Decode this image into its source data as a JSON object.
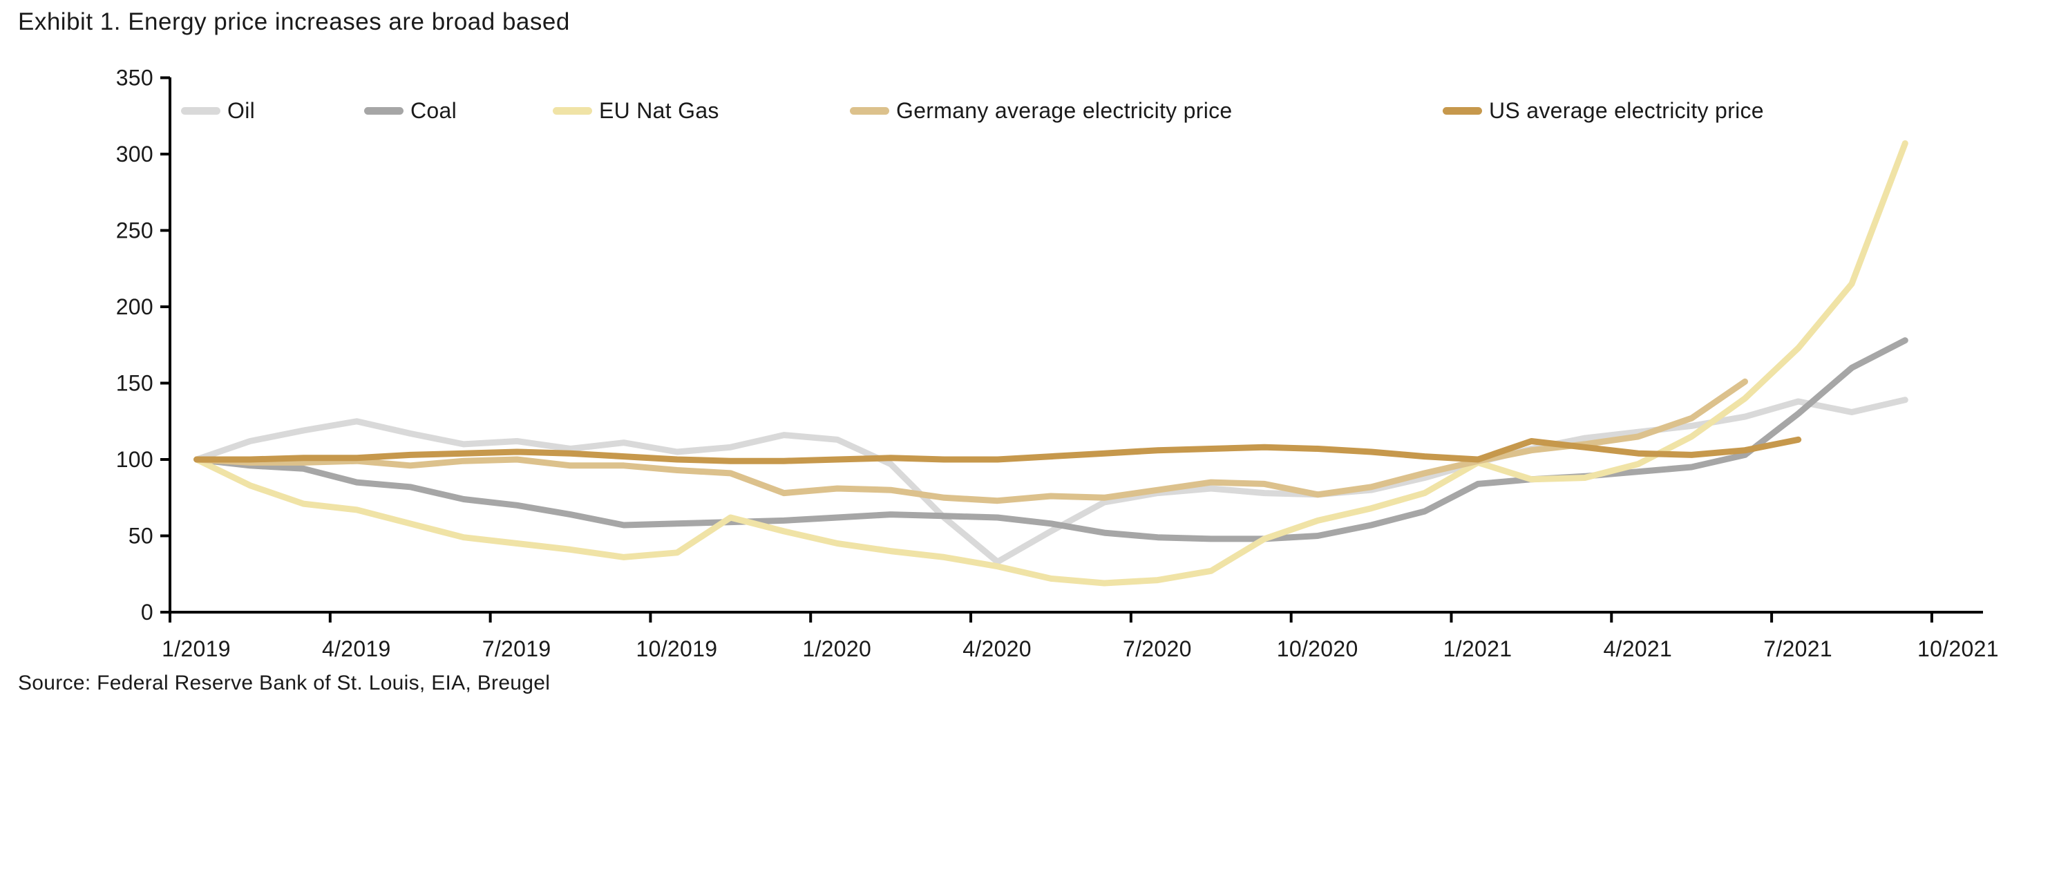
{
  "title": "Exhibit 1. Energy price increases are broad based",
  "source": "Source: Federal Reserve Bank of St. Louis, EIA, Breugel",
  "colors": {
    "axis": "#000000",
    "text": "#1a1a1a",
    "oil": "#D9D9D9",
    "coal": "#A6A6A6",
    "eu_nat_gas": "#F0E3A6",
    "germany_electricity": "#DCC18C",
    "us_electricity": "#C6984C"
  },
  "chart_data": {
    "type": "line",
    "title": "Exhibit 1. Energy price increases are broad based",
    "xlabel": "",
    "ylabel": "",
    "ylim": [
      0,
      350
    ],
    "y_ticks": [
      "0",
      "50",
      "100",
      "150",
      "200",
      "250",
      "300",
      "350"
    ],
    "x_tick_labels": [
      "1/2019",
      "4/2019",
      "7/2019",
      "10/2019",
      "1/2020",
      "4/2020",
      "7/2020",
      "10/2020",
      "1/2021",
      "4/2021",
      "7/2021",
      "10/2021"
    ],
    "x_unit": "month, monthly points starting 1/2019, index Jan 2019 = 100",
    "grid": false,
    "legend_position": "top",
    "series": [
      {
        "name": "Oil",
        "color_key": "oil",
        "start": "1/2019",
        "values": [
          100,
          112,
          119,
          125,
          117,
          110,
          112,
          107,
          111,
          105,
          108,
          116,
          113,
          97,
          62,
          33,
          53,
          72,
          78,
          81,
          78,
          77,
          80,
          88,
          98,
          107,
          114,
          118,
          122,
          128,
          138,
          131,
          139
        ]
      },
      {
        "name": "Coal",
        "color_key": "coal",
        "start": "1/2019",
        "values": [
          100,
          96,
          94,
          85,
          82,
          74,
          70,
          64,
          57,
          58,
          59,
          60,
          62,
          64,
          63,
          62,
          58,
          52,
          49,
          48,
          48,
          50,
          57,
          66,
          84,
          87,
          89,
          92,
          95,
          103,
          130,
          160,
          178
        ]
      },
      {
        "name": "EU Nat Gas",
        "color_key": "eu_nat_gas",
        "start": "1/2019",
        "values": [
          100,
          83,
          71,
          67,
          58,
          49,
          45,
          41,
          36,
          39,
          62,
          53,
          45,
          40,
          36,
          30,
          22,
          19,
          21,
          27,
          48,
          60,
          68,
          78,
          98,
          87,
          88,
          97,
          115,
          140,
          173,
          215,
          307
        ]
      },
      {
        "name": "Germany average electricity price",
        "color_key": "germany_electricity",
        "start": "1/2019",
        "values": [
          100,
          98,
          98,
          99,
          96,
          99,
          100,
          96,
          96,
          93,
          91,
          78,
          81,
          80,
          75,
          73,
          76,
          75,
          80,
          85,
          84,
          77,
          82,
          91,
          99,
          106,
          110,
          115,
          127,
          151
        ]
      },
      {
        "name": "US average electricity price",
        "color_key": "us_electricity",
        "start": "1/2019",
        "values": [
          100,
          100,
          101,
          101,
          103,
          104,
          105,
          104,
          102,
          100,
          99,
          99,
          100,
          101,
          100,
          100,
          102,
          104,
          106,
          107,
          108,
          107,
          105,
          102,
          100,
          112,
          108,
          104,
          103,
          106,
          113
        ]
      }
    ]
  }
}
